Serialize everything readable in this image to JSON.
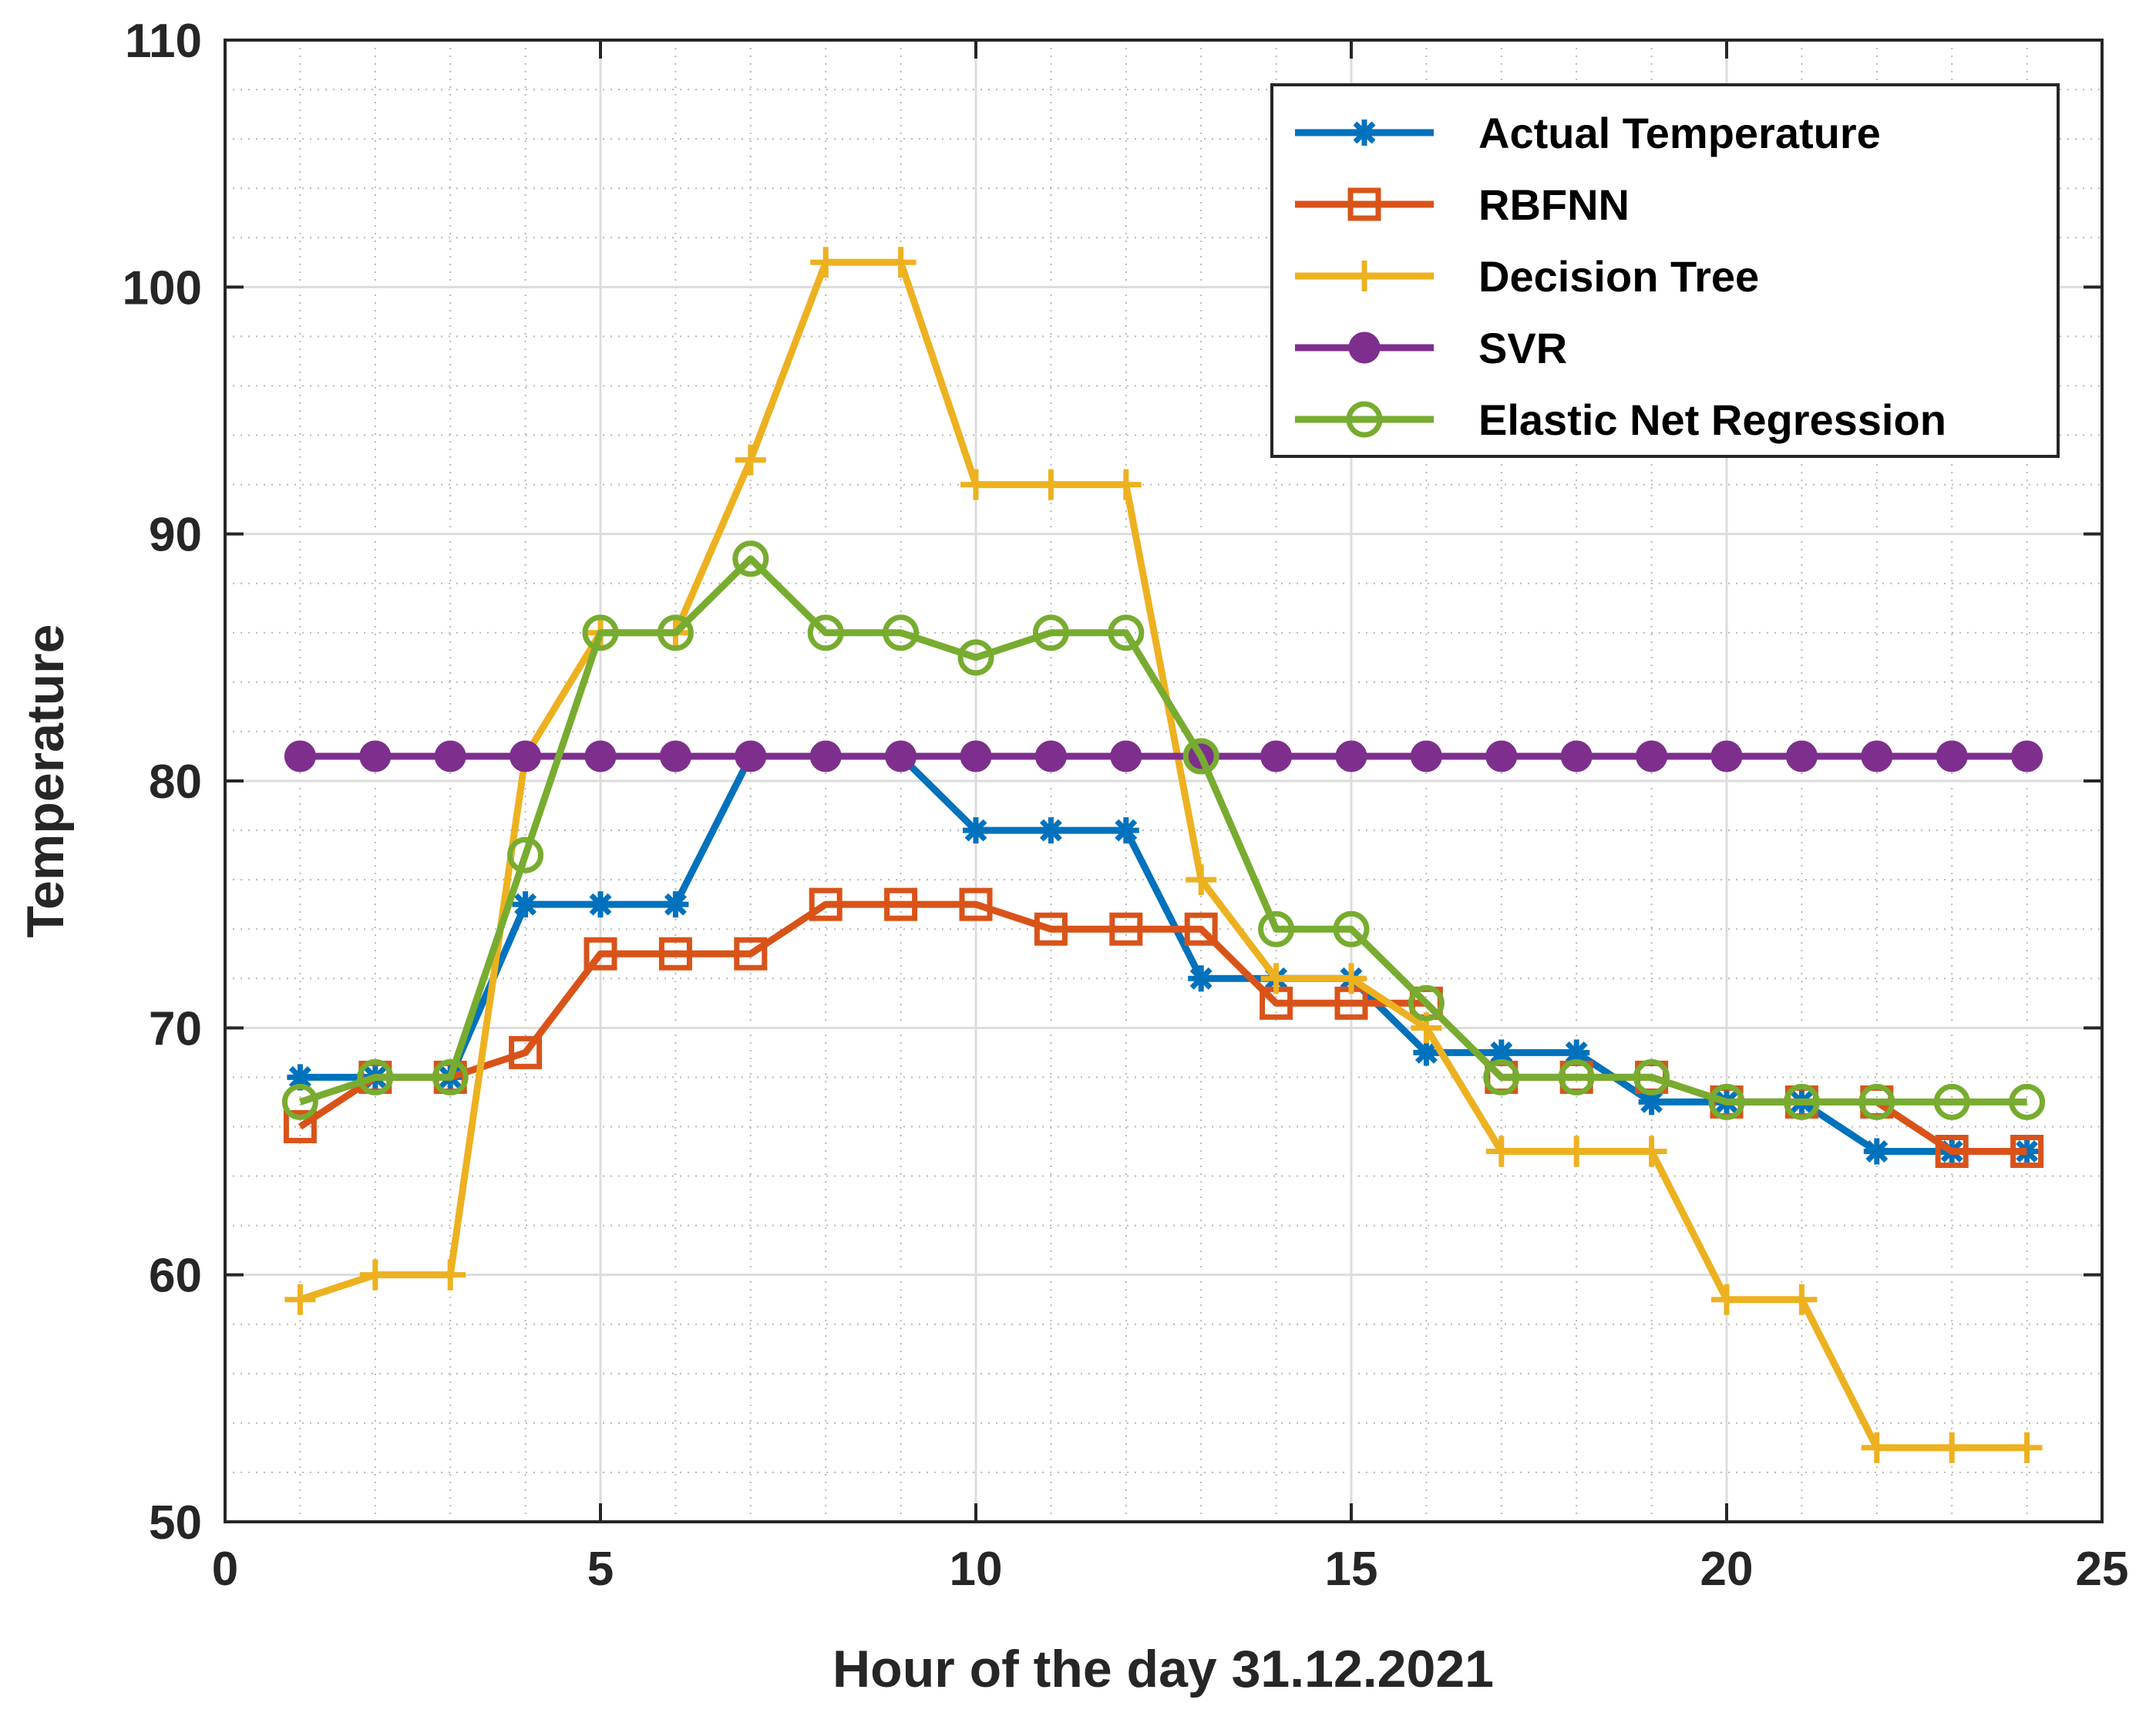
{
  "chart_data": {
    "type": "line",
    "xlabel": "Hour of the day 31.12.2021",
    "ylabel": "Temperature",
    "xlim": [
      0,
      25
    ],
    "ylim": [
      50,
      110
    ],
    "xticks": [
      0,
      5,
      10,
      15,
      20,
      25
    ],
    "yticks": [
      50,
      60,
      70,
      80,
      90,
      100,
      110
    ],
    "grid": true,
    "minor_grid": true,
    "legend_position": "top-right",
    "x": [
      1,
      2,
      3,
      4,
      5,
      6,
      7,
      8,
      9,
      10,
      11,
      12,
      13,
      14,
      15,
      16,
      17,
      18,
      19,
      20,
      21,
      22,
      23,
      24
    ],
    "series": [
      {
        "name": "Actual Temperature",
        "color": "#0072BD",
        "marker": "asterisk",
        "values": [
          68,
          68,
          68,
          75,
          75,
          75,
          81,
          81,
          81,
          78,
          78,
          78,
          72,
          72,
          72,
          69,
          69,
          69,
          67,
          67,
          67,
          65,
          65,
          65
        ]
      },
      {
        "name": "RBFNN",
        "color": "#D95319",
        "marker": "square",
        "values": [
          66,
          68,
          68,
          69,
          73,
          73,
          73,
          75,
          75,
          75,
          74,
          74,
          74,
          71,
          71,
          71,
          68,
          68,
          68,
          67,
          67,
          67,
          65,
          65
        ]
      },
      {
        "name": "Decision Tree",
        "color": "#EDB120",
        "marker": "plus",
        "values": [
          59,
          60,
          60,
          81,
          86,
          86,
          93,
          101,
          101,
          92,
          92,
          92,
          76,
          72,
          72,
          70,
          65,
          65,
          65,
          59,
          59,
          53,
          53,
          53
        ]
      },
      {
        "name": "SVR",
        "color": "#7E2F8E",
        "marker": "filled-circle",
        "values": [
          81,
          81,
          81,
          81,
          81,
          81,
          81,
          81,
          81,
          81,
          81,
          81,
          81,
          81,
          81,
          81,
          81,
          81,
          81,
          81,
          81,
          81,
          81,
          81
        ]
      },
      {
        "name": "Elastic Net Regression",
        "color": "#77AC30",
        "marker": "circle",
        "values": [
          67,
          68,
          68,
          77,
          86,
          86,
          89,
          86,
          86,
          85,
          86,
          86,
          81,
          74,
          74,
          71,
          68,
          68,
          68,
          67,
          67,
          67,
          67,
          67
        ]
      }
    ]
  }
}
